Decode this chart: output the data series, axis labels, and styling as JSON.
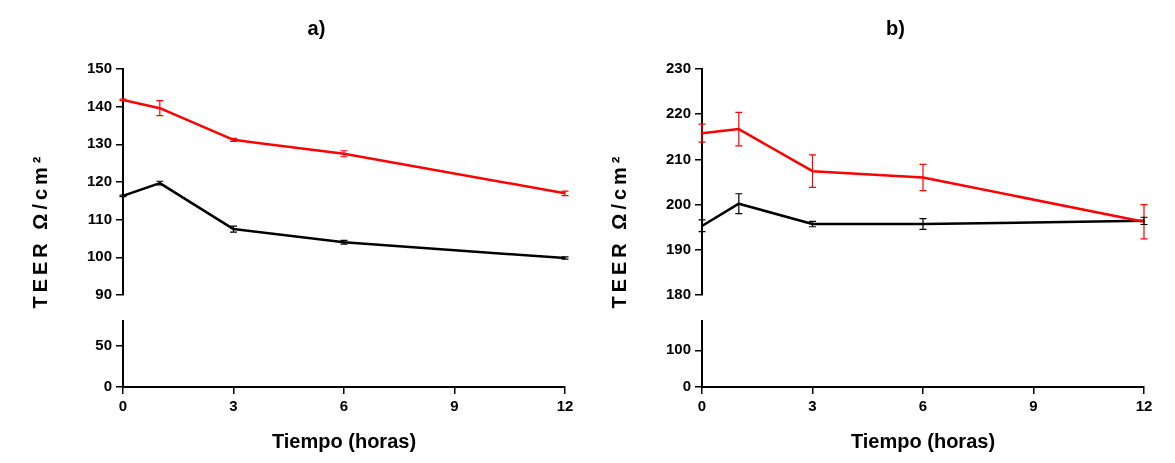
{
  "chart_data": [
    {
      "type": "line",
      "title": "a)",
      "ylabel": "TEER Ω/cm²",
      "x": [
        0,
        1,
        3,
        6,
        12
      ],
      "xlim": [
        0,
        12
      ],
      "ylim": [
        90,
        150
      ],
      "yticks": [
        90,
        100,
        110,
        120,
        130,
        140,
        150
      ],
      "tick_labels": "y",
      "grid": false,
      "legend": false,
      "line_style": "solid",
      "series": [
        {
          "color": "#ff0000",
          "values": [
            141.8,
            139.6,
            131.2,
            127.5,
            117
          ],
          "errors": [
            0.2,
            2,
            0.4,
            0.8,
            0.6
          ]
        },
        {
          "color": "#000000",
          "values": [
            116.3,
            119.7,
            107.5,
            104,
            99.8
          ],
          "errors": [
            0.2,
            0.5,
            0.8,
            0.5,
            0.3
          ]
        }
      ]
    },
    {
      "type": "line",
      "xlabel": "Tiempo (horas)",
      "xlim": [
        0,
        12
      ],
      "xticks": [
        0,
        3,
        6,
        9,
        12
      ],
      "ylim": [
        0,
        80
      ],
      "yticks": [
        0,
        50
      ],
      "grid": false,
      "legend": false
    },
    {
      "type": "line",
      "title": "b)",
      "ylabel": "TEER Ω/cm²",
      "x": [
        0,
        1,
        3,
        6,
        12
      ],
      "xlim": [
        0,
        12
      ],
      "ylim": [
        180,
        230
      ],
      "yticks": [
        180,
        190,
        200,
        210,
        220,
        230
      ],
      "tick_labels": "y",
      "grid": false,
      "legend": false,
      "line_style": "solid",
      "series": [
        {
          "color": "#ff0000",
          "values": [
            215.8,
            216.7,
            207.4,
            206,
            196.2
          ],
          "errors": [
            2,
            3.7,
            3.6,
            2.9,
            3.8
          ]
        },
        {
          "color": "#000000",
          "values": [
            195.3,
            200.2,
            195.7,
            195.7,
            196.4
          ],
          "errors": [
            1.3,
            2.2,
            0.6,
            1.2,
            0.8
          ]
        }
      ]
    },
    {
      "type": "line",
      "xlabel": "Tiempo (horas)",
      "xlim": [
        0,
        12
      ],
      "xticks": [
        0,
        3,
        6,
        9,
        12
      ],
      "ylim": [
        0,
        180
      ],
      "yticks": [
        0,
        100
      ],
      "grid": false,
      "legend": false
    }
  ]
}
